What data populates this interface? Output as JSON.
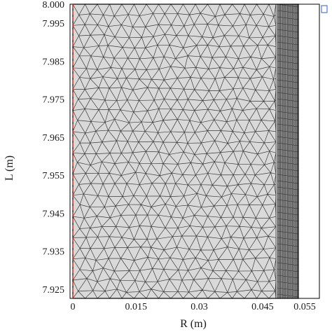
{
  "figure": {
    "x_axis_label": "R (m)",
    "y_axis_label": "L (m)",
    "x_ticks": [
      "0",
      "0.015",
      "0.03",
      "0.045",
      "0.055"
    ],
    "y_ticks": [
      "8.000",
      "7.995",
      "7.985",
      "7.975",
      "7.965",
      "7.955",
      "7.945",
      "7.935",
      "7.925"
    ],
    "colors": {
      "mesh_fill": "#d9d9d9",
      "mesh_edge": "#3a3a3a",
      "boundary_layer": "#8c8c8c",
      "axis_line": "#d0342c",
      "frame": "#000000"
    }
  },
  "chart_data": {
    "type": "other",
    "description_kind": "finite-element triangular mesh",
    "x_axis": {
      "label": "R (m)",
      "range": [
        -0.002,
        0.06
      ],
      "tick_values": [
        0,
        0.015,
        0.03,
        0.045,
        0.055
      ]
    },
    "y_axis": {
      "label": "L (m)",
      "range": [
        7.9225,
        8.0
      ],
      "tick_values": [
        8.0,
        7.995,
        7.985,
        7.975,
        7.965,
        7.955,
        7.945,
        7.935,
        7.925
      ]
    },
    "domain": {
      "r_min": 0,
      "r_max": 0.0535,
      "l_min": 7.9225,
      "l_max": 8.0
    },
    "boundary_layer_r_range": [
      0.0485,
      0.0535
    ],
    "symmetry_axis_r": 0
  }
}
